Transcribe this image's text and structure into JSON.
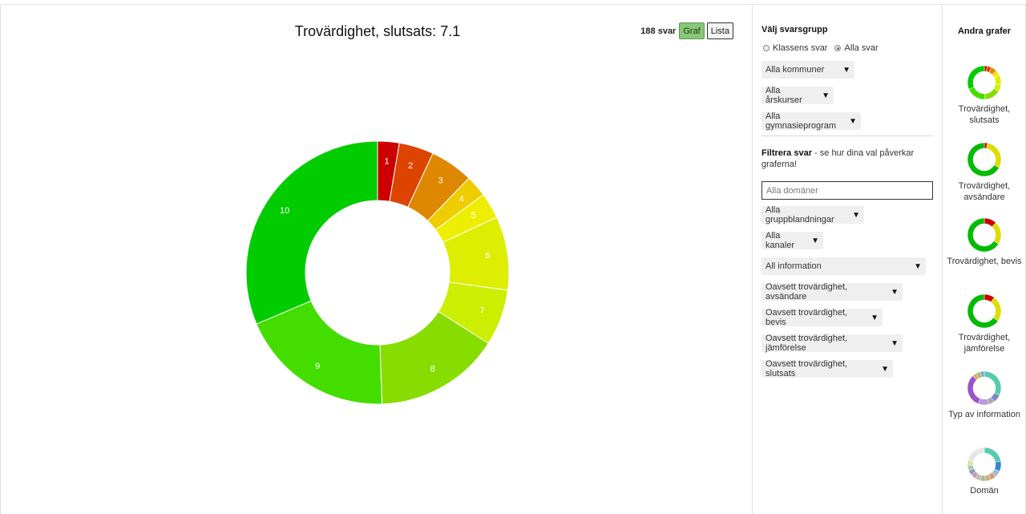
{
  "main": {
    "title": "Trovärdighet, slutsats: 7.1",
    "count": "188 svar",
    "view_graph": "Graf",
    "view_list": "Lista"
  },
  "chart_data": {
    "type": "pie",
    "title": "Trovärdighet, slutsats: 7.1",
    "categories": [
      "1",
      "2",
      "3",
      "4",
      "5",
      "6",
      "7",
      "8",
      "9",
      "10"
    ],
    "values": [
      5,
      8,
      10,
      5,
      6,
      17,
      13,
      29,
      36,
      59
    ],
    "colors": [
      "#cc0000",
      "#dd4400",
      "#dd8800",
      "#eecc00",
      "#eeee00",
      "#ddee00",
      "#ccee00",
      "#88dd00",
      "#44dd00",
      "#00cc00"
    ]
  },
  "filters": {
    "group_heading": "Välj svarsgrupp",
    "radio_class": "Klassens svar",
    "radio_all": "Alla svar",
    "municipalities": "Alla kommuner",
    "grades": "Alla årskurser",
    "programs": "Alla gymnasieprogram",
    "filter_heading": "Filtrera svar",
    "filter_text": "- se hur dina val påverkar graferna!",
    "domain_placeholder": "Alla domäner",
    "group_mix": "Alla gruppblandningar",
    "channels": "Alla kanaler",
    "information": "All information",
    "sender": "Oavsett trovärdighet, avsändare",
    "evidence": "Oavsett trovärdighet, bevis",
    "comparison": "Oavsett trovärdighet, jämförelse",
    "conclusion": "Oavsett trovärdighet, slutsats"
  },
  "others": {
    "title": "Andra grafer",
    "items": [
      {
        "label": "Trovärdighet, slutsats",
        "values": [
          5,
          8,
          10,
          5,
          6,
          17,
          13,
          29,
          36,
          59
        ],
        "colors": [
          "#cc0000",
          "#dd4400",
          "#dd8800",
          "#eecc00",
          "#eeee00",
          "#ddee00",
          "#ccee00",
          "#88dd00",
          "#44dd00",
          "#00cc00"
        ]
      },
      {
        "label": "Trovärdighet, avsändare",
        "values": [
          3,
          30,
          67
        ],
        "colors": [
          "#cc0000",
          "#dddd00",
          "#00bb00"
        ]
      },
      {
        "label": "Trovärdighet, bevis",
        "values": [
          12,
          22,
          66
        ],
        "colors": [
          "#cc0000",
          "#dddd00",
          "#00bb00"
        ]
      },
      {
        "label": "Trovärdighet, jämförelse",
        "values": [
          10,
          25,
          65
        ],
        "colors": [
          "#cc0000",
          "#dddd00",
          "#00bb00"
        ]
      },
      {
        "label": "Typ av information",
        "values": [
          32,
          8,
          6,
          10,
          32,
          4,
          4,
          4
        ],
        "colors": [
          "#55ccaa",
          "#7788cc",
          "#aaaaaa",
          "#bb99dd",
          "#9955cc",
          "#ddaa66",
          "#aabb55",
          "#77aadd"
        ]
      },
      {
        "label": "Domän",
        "values": [
          22,
          10,
          6,
          6,
          5,
          5,
          5,
          5,
          5,
          5,
          5,
          21
        ],
        "colors": [
          "#55ccaa",
          "#3388cc",
          "#99bbdd",
          "#dd9966",
          "#ccaa88",
          "#aabb88",
          "#bbbbbb",
          "#cc99aa",
          "#8899cc",
          "#aaccaa",
          "#ddddaa",
          "#e6e6e6"
        ]
      }
    ]
  }
}
